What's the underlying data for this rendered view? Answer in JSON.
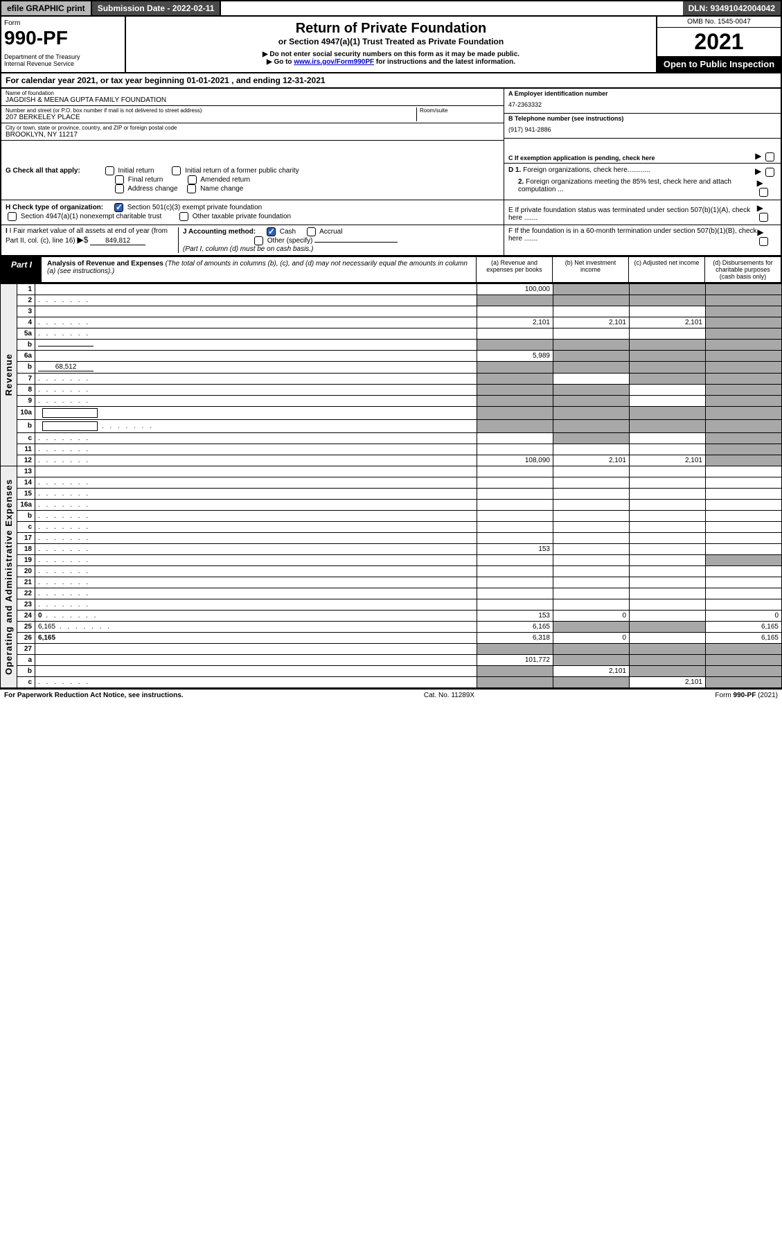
{
  "topbar": {
    "efile": "efile GRAPHIC print",
    "submission_label": "Submission Date - 2022-02-11",
    "dln": "DLN: 93491042004042"
  },
  "header": {
    "form_word": "Form",
    "form_number": "990-PF",
    "dept": "Department of the Treasury\nInternal Revenue Service",
    "title": "Return of Private Foundation",
    "subtitle": "or Section 4947(a)(1) Trust Treated as Private Foundation",
    "instruct1": "▶ Do not enter social security numbers on this form as it may be made public.",
    "instruct2_pre": "▶ Go to ",
    "instruct2_link": "www.irs.gov/Form990PF",
    "instruct2_post": " for instructions and the latest information.",
    "omb": "OMB No. 1545-0047",
    "year": "2021",
    "open_public": "Open to Public Inspection"
  },
  "calyear": "For calendar year 2021, or tax year beginning 01-01-2021              , and ending 12-31-2021",
  "foundation": {
    "name_label": "Name of foundation",
    "name": "JAGDISH & MEENA GUPTA FAMILY FOUNDATION",
    "addr_label": "Number and street (or P.O. box number if mail is not delivered to street address)",
    "addr": "207 BERKELEY PLACE",
    "room_label": "Room/suite",
    "city_label": "City or town, state or province, country, and ZIP or foreign postal code",
    "city": "BROOKLYN, NY  11217"
  },
  "right_info": {
    "A_label": "A Employer identification number",
    "A_value": "47-2363332",
    "B_label": "B Telephone number (see instructions)",
    "B_value": "(917) 941-2886",
    "C_label": "C If exemption application is pending, check here",
    "D1_label": "D 1. Foreign organizations, check here............",
    "D2_label": "2. Foreign organizations meeting the 85% test, check here and attach computation ...",
    "E_label": "E  If private foundation status was terminated under section 507(b)(1)(A), check here .......",
    "F_label": "F  If the foundation is in a 60-month termination under section 507(b)(1)(B), check here ......."
  },
  "G": {
    "label": "G Check all that apply:",
    "initial_return": "Initial return",
    "final_return": "Final return",
    "address_change": "Address change",
    "initial_former": "Initial return of a former public charity",
    "amended": "Amended return",
    "name_change": "Name change"
  },
  "H": {
    "label": "H Check type of organization:",
    "opt1": "Section 501(c)(3) exempt private foundation",
    "opt2": "Section 4947(a)(1) nonexempt charitable trust",
    "opt3": "Other taxable private foundation"
  },
  "I": {
    "label": "I Fair market value of all assets at end of year (from Part II, col. (c), line 16)",
    "arrow": "▶$",
    "value": "849,812"
  },
  "J": {
    "label": "J Accounting method:",
    "cash": "Cash",
    "accrual": "Accrual",
    "other": "Other (specify)",
    "note": "(Part I, column (d) must be on cash basis.)"
  },
  "part1": {
    "label": "Part I",
    "title": "Analysis of Revenue and Expenses",
    "note": " (The total of amounts in columns (b), (c), and (d) may not necessarily equal the amounts in column (a) (see instructions).)",
    "col_a": "(a)    Revenue and expenses per books",
    "col_b": "(b)    Net investment income",
    "col_c": "(c)   Adjusted net income",
    "col_d": "(d)   Disbursements for charitable purposes (cash basis only)"
  },
  "sidelabels": {
    "revenue": "Revenue",
    "opex": "Operating and Administrative Expenses"
  },
  "rows": [
    {
      "n": "1",
      "d": "",
      "a": "100,000",
      "b": "",
      "c": "",
      "shade": [
        "b",
        "c",
        "d"
      ]
    },
    {
      "n": "2",
      "d": "",
      "dots": true,
      "a": "",
      "b": "",
      "c": "",
      "shade": [
        "a",
        "b",
        "c",
        "d"
      ]
    },
    {
      "n": "3",
      "d": "",
      "a": "",
      "b": "",
      "c": "",
      "shade": [
        "d"
      ]
    },
    {
      "n": "4",
      "d": "",
      "dots": true,
      "a": "2,101",
      "b": "2,101",
      "c": "2,101",
      "shade": [
        "d"
      ]
    },
    {
      "n": "5a",
      "d": "",
      "dots": true,
      "a": "",
      "b": "",
      "c": "",
      "shade": [
        "d"
      ]
    },
    {
      "n": "b",
      "d": "",
      "underline": true,
      "a": "",
      "b": "",
      "c": "",
      "shade": [
        "a",
        "b",
        "c",
        "d"
      ]
    },
    {
      "n": "6a",
      "d": "",
      "a": "5,989",
      "b": "",
      "c": "",
      "shade": [
        "b",
        "c",
        "d"
      ]
    },
    {
      "n": "b",
      "d": "",
      "underline": true,
      "uval": "68,512",
      "a": "",
      "b": "",
      "c": "",
      "shade": [
        "a",
        "b",
        "c",
        "d"
      ]
    },
    {
      "n": "7",
      "d": "",
      "dots": true,
      "a": "",
      "b": "",
      "c": "",
      "shade": [
        "a",
        "c",
        "d"
      ]
    },
    {
      "n": "8",
      "d": "",
      "dots": true,
      "a": "",
      "b": "",
      "c": "",
      "shade": [
        "a",
        "b",
        "d"
      ]
    },
    {
      "n": "9",
      "d": "",
      "dots": true,
      "a": "",
      "b": "",
      "c": "",
      "shade": [
        "a",
        "b",
        "d"
      ]
    },
    {
      "n": "10a",
      "d": "",
      "box": true,
      "a": "",
      "b": "",
      "c": "",
      "shade": [
        "a",
        "b",
        "c",
        "d"
      ]
    },
    {
      "n": "b",
      "d": "",
      "dots": true,
      "box": true,
      "a": "",
      "b": "",
      "c": "",
      "shade": [
        "a",
        "b",
        "c",
        "d"
      ]
    },
    {
      "n": "c",
      "d": "",
      "dots": true,
      "a": "",
      "b": "",
      "c": "",
      "shade": [
        "b",
        "d"
      ]
    },
    {
      "n": "11",
      "d": "",
      "dots": true,
      "a": "",
      "b": "",
      "c": "",
      "shade": [
        "d"
      ]
    },
    {
      "n": "12",
      "d": "",
      "dots": true,
      "bold": true,
      "a": "108,090",
      "b": "2,101",
      "c": "2,101",
      "shade": [
        "d"
      ]
    },
    {
      "n": "13",
      "d": "",
      "a": "",
      "b": "",
      "c": ""
    },
    {
      "n": "14",
      "d": "",
      "dots": true,
      "a": "",
      "b": "",
      "c": ""
    },
    {
      "n": "15",
      "d": "",
      "dots": true,
      "a": "",
      "b": "",
      "c": ""
    },
    {
      "n": "16a",
      "d": "",
      "dots": true,
      "a": "",
      "b": "",
      "c": ""
    },
    {
      "n": "b",
      "d": "",
      "dots": true,
      "a": "",
      "b": "",
      "c": ""
    },
    {
      "n": "c",
      "d": "",
      "dots": true,
      "a": "",
      "b": "",
      "c": ""
    },
    {
      "n": "17",
      "d": "",
      "dots": true,
      "a": "",
      "b": "",
      "c": ""
    },
    {
      "n": "18",
      "d": "",
      "dots": true,
      "a": "153",
      "b": "",
      "c": ""
    },
    {
      "n": "19",
      "d": "",
      "dots": true,
      "a": "",
      "b": "",
      "c": "",
      "shade": [
        "d"
      ]
    },
    {
      "n": "20",
      "d": "",
      "dots": true,
      "a": "",
      "b": "",
      "c": ""
    },
    {
      "n": "21",
      "d": "",
      "dots": true,
      "a": "",
      "b": "",
      "c": ""
    },
    {
      "n": "22",
      "d": "",
      "dots": true,
      "a": "",
      "b": "",
      "c": ""
    },
    {
      "n": "23",
      "d": "",
      "dots": true,
      "a": "",
      "b": "",
      "c": ""
    },
    {
      "n": "24",
      "d": "0",
      "dots": true,
      "bold": true,
      "a": "153",
      "b": "0",
      "c": ""
    },
    {
      "n": "25",
      "d": "6,165",
      "dots": true,
      "a": "6,165",
      "b": "",
      "c": "",
      "shade": [
        "b",
        "c"
      ]
    },
    {
      "n": "26",
      "d": "6,165",
      "bold": true,
      "a": "6,318",
      "b": "0",
      "c": ""
    },
    {
      "n": "27",
      "d": "",
      "a": "",
      "b": "",
      "c": "",
      "shade": [
        "a",
        "b",
        "c",
        "d"
      ]
    },
    {
      "n": "a",
      "d": "",
      "bold": true,
      "a": "101,772",
      "b": "",
      "c": "",
      "shade": [
        "b",
        "c",
        "d"
      ]
    },
    {
      "n": "b",
      "d": "",
      "bold": true,
      "a": "",
      "b": "2,101",
      "c": "",
      "shade": [
        "a",
        "c",
        "d"
      ]
    },
    {
      "n": "c",
      "d": "",
      "dots": true,
      "bold": true,
      "a": "",
      "b": "",
      "c": "2,101",
      "shade": [
        "a",
        "b",
        "d"
      ]
    }
  ],
  "footer": {
    "left": "For Paperwork Reduction Act Notice, see instructions.",
    "center": "Cat. No. 11289X",
    "right": "Form 990-PF (2021)"
  },
  "colors": {
    "shade": "#a8a8a8",
    "link": "#0000cc"
  }
}
